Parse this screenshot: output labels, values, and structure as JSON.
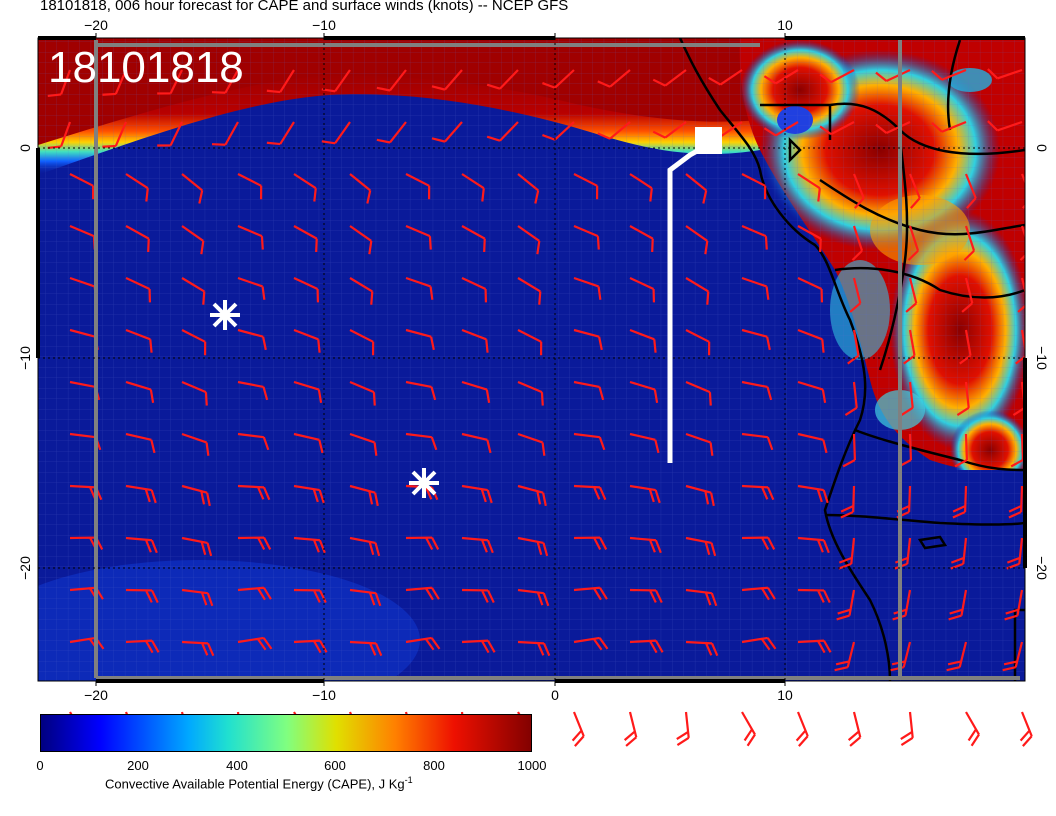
{
  "title": "18101818, 006 hour forecast for CAPE and surface winds (knots) -- NCEP GFS",
  "overlay_date": "18101818",
  "map": {
    "lon_ticks": [
      "−20",
      "−10",
      "0",
      "10"
    ],
    "lat_ticks": [
      "0",
      "−10",
      "−20"
    ],
    "colors": {
      "ocean": "#0a1a9a",
      "deep_ocean": "#061285",
      "wind_barb": "#ff1a1a",
      "highlight": "#ffffff",
      "coast": "#000000"
    },
    "markers": [
      {
        "name": "asterisk-marker-1",
        "icon": "asterisk"
      },
      {
        "name": "asterisk-marker-2",
        "icon": "asterisk"
      }
    ]
  },
  "colorbar": {
    "ticks": [
      "0",
      "200",
      "400",
      "600",
      "800",
      "1000"
    ],
    "label": "Convective Available Potential Energy (CAPE), J Kg",
    "label_sup": "-1"
  }
}
